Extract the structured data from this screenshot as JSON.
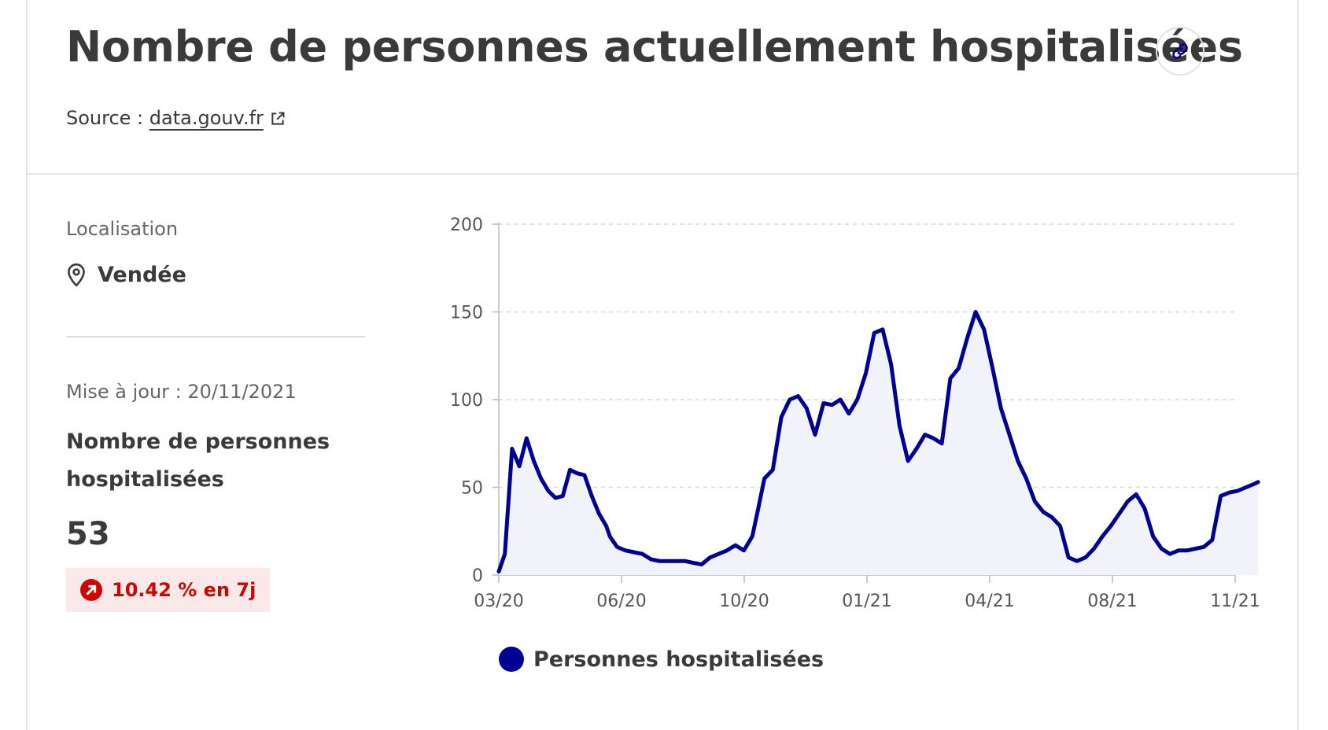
{
  "header": {
    "title": "Nombre de personnes actuellement hospitalisées",
    "link_icon": "link-icon",
    "source_label": "Source : ",
    "source_link": "data.gouv.fr",
    "external_icon": "external-link-icon"
  },
  "sidebar": {
    "location_label": "Localisation",
    "location_icon": "map-pin-icon",
    "location_value": "Vendée",
    "update_label": "Mise à jour : 20/11/2021",
    "indicator_title": "Nombre de personnes hospitalisées",
    "indicator_value": "53",
    "trend_icon": "arrow-up-right-icon",
    "trend_text": "10.42 % en 7j",
    "trend_color": "#ce0500",
    "trend_background": "#fbe9e9"
  },
  "chart_data": {
    "type": "area",
    "x_ticks": [
      "03/20",
      "06/20",
      "10/20",
      "01/21",
      "04/21",
      "08/21",
      "11/21"
    ],
    "y_ticks": [
      0,
      50,
      100,
      150,
      200
    ],
    "ylim": [
      0,
      200
    ],
    "xlim": [
      "2020-03",
      "2021-11"
    ],
    "grid": true,
    "line_color": "#000091",
    "fill_color": "#f2f2fb",
    "series": [
      {
        "name": "Personnes hospitalisées",
        "x": [
          "2020-03",
          "2020-03-06",
          "2020-03-12",
          "2020-03-18",
          "2020-03-24",
          "2020-03-30",
          "2020-04-05",
          "2020-04-11",
          "2020-04-17",
          "2020-04-23",
          "2020-04-29",
          "2020-05-05",
          "2020-05-11",
          "2020-05-17",
          "2020-05-23",
          "2020-05-29",
          "2020-06",
          "2020-06-07",
          "2020-06-14",
          "2020-06-21",
          "2020-06-28",
          "2020-07-05",
          "2020-07-12",
          "2020-07-19",
          "2020-07-26",
          "2020-08-02",
          "2020-08-09",
          "2020-08-16",
          "2020-08-23",
          "2020-08-30",
          "2020-09-06",
          "2020-09-13",
          "2020-09-20",
          "2020-09-27",
          "2020-10",
          "2020-10-07",
          "2020-10-14",
          "2020-10-21",
          "2020-10-28",
          "2020-11-04",
          "2020-11-11",
          "2020-11-18",
          "2020-11-25",
          "2020-12-02",
          "2020-12-09",
          "2020-12-16",
          "2020-12-23",
          "2020-12-30",
          "2021-01-06",
          "2021-01-13",
          "2021-01-20",
          "2021-01-27",
          "2021-02-03",
          "2021-02-10",
          "2021-02-17",
          "2021-02-24",
          "2021-03-03",
          "2021-03-10",
          "2021-03-17",
          "2021-03-24",
          "2021-03-31",
          "2021-04-07",
          "2021-04-14",
          "2021-04-21",
          "2021-04-28",
          "2021-05-05",
          "2021-05-12",
          "2021-05-19",
          "2021-05-26",
          "2021-06-02",
          "2021-06-09",
          "2021-06-16",
          "2021-06-23",
          "2021-06-30",
          "2021-07-07",
          "2021-07-14",
          "2021-07-21",
          "2021-07-28",
          "2021-08-04",
          "2021-08-11",
          "2021-08-18",
          "2021-08-25",
          "2021-09-01",
          "2021-09-08",
          "2021-09-15",
          "2021-09-22",
          "2021-09-29",
          "2021-10-06",
          "2021-10-13",
          "2021-10-20",
          "2021-10-27",
          "2021-11-03",
          "2021-11-10",
          "2021-11-17",
          "2021-11-20"
        ],
        "values": [
          2,
          12,
          72,
          62,
          78,
          65,
          55,
          48,
          44,
          45,
          60,
          58,
          57,
          45,
          35,
          28,
          22,
          16,
          14,
          13,
          12,
          9,
          8,
          8,
          8,
          8,
          7,
          6,
          10,
          12,
          14,
          17,
          14,
          22,
          35,
          55,
          60,
          90,
          100,
          102,
          95,
          80,
          98,
          97,
          100,
          92,
          100,
          115,
          138,
          140,
          120,
          85,
          65,
          72,
          80,
          78,
          75,
          112,
          118,
          135,
          150,
          140,
          118,
          95,
          80,
          65,
          55,
          42,
          36,
          33,
          28,
          10,
          8,
          10,
          15,
          22,
          28,
          35,
          42,
          46,
          38,
          22,
          15,
          12,
          14,
          14,
          15,
          16,
          20,
          45,
          47,
          48,
          50,
          52,
          53
        ]
      }
    ]
  }
}
